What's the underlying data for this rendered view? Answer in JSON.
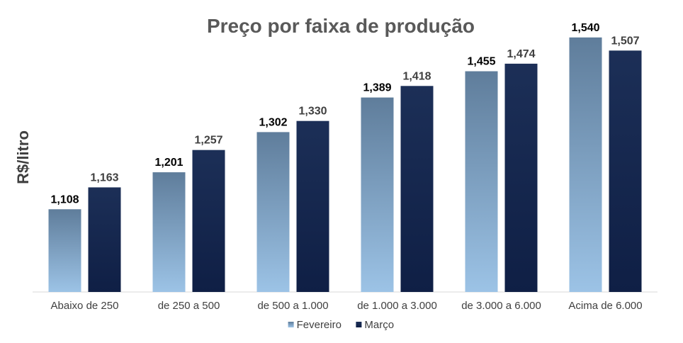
{
  "chart_data": {
    "type": "bar",
    "title": "Preço por faixa de produção",
    "xlabel": "",
    "ylabel": "R$/litro",
    "categories": [
      "Abaixo de 250",
      "de 250 a 500",
      "de 500 a 1.000",
      "de 1.000 a 3.000",
      "de 3.000 a 6.000",
      "Acima de 6.000"
    ],
    "series": [
      {
        "name": "Fevereiro",
        "values": [
          1.108,
          1.201,
          1.302,
          1.389,
          1.455,
          1.54
        ],
        "labels": [
          "1,108",
          "1,201",
          "1,302",
          "1,389",
          "1,455",
          "1,540"
        ],
        "color_top": "#5f7d9b",
        "color_bottom": "#9cc3e6"
      },
      {
        "name": "Março",
        "values": [
          1.163,
          1.257,
          1.33,
          1.418,
          1.474,
          1.507
        ],
        "labels": [
          "1,163",
          "1,257",
          "1,330",
          "1,418",
          "1,474",
          "1,507"
        ],
        "color_top": "#1c2f57",
        "color_bottom": "#0f1f45"
      }
    ],
    "ylim": [
      0.9,
      1.57
    ],
    "grid": false,
    "legend": "bottom",
    "data_labels": true
  }
}
